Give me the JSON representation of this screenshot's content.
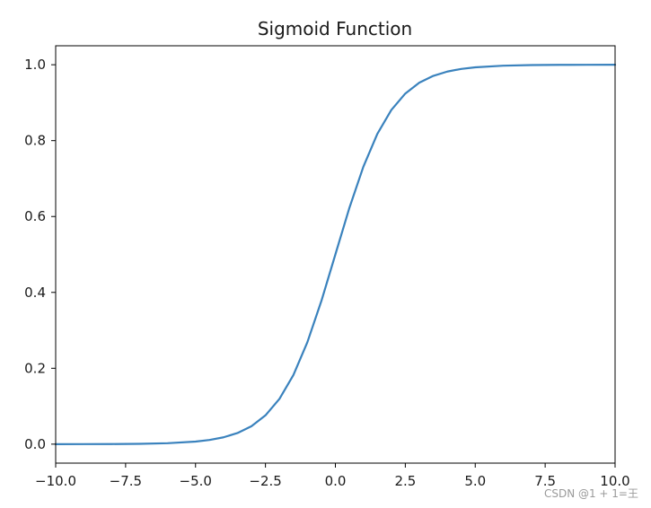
{
  "watermark": "CSDN @1 + 1=王",
  "chart_data": {
    "type": "line",
    "title": "Sigmoid Function",
    "xlabel": "",
    "ylabel": "",
    "xlim": [
      -10,
      10
    ],
    "ylim": [
      -0.05,
      1.05
    ],
    "grid": false,
    "x_ticks": [
      -10,
      -7.5,
      -5,
      -2.5,
      0,
      2.5,
      5,
      7.5,
      10
    ],
    "x_tick_labels": [
      "−10.0",
      "−7.5",
      "−5.0",
      "−2.5",
      "0.0",
      "2.5",
      "5.0",
      "7.5",
      "10.0"
    ],
    "y_ticks": [
      0,
      0.2,
      0.4,
      0.6,
      0.8,
      1.0
    ],
    "y_tick_labels": [
      "0.0",
      "0.2",
      "0.4",
      "0.6",
      "0.8",
      "1.0"
    ],
    "series": [
      {
        "color": "#3a82bd",
        "x": [
          -10,
          -9,
          -8,
          -7,
          -6,
          -5,
          -4.5,
          -4,
          -3.5,
          -3,
          -2.5,
          -2,
          -1.5,
          -1,
          -0.5,
          0,
          0.5,
          1,
          1.5,
          2,
          2.5,
          3,
          3.5,
          4,
          4.5,
          5,
          6,
          7,
          8,
          9,
          10
        ],
        "y": [
          0.0,
          0.0001,
          0.0003,
          0.0009,
          0.0025,
          0.0067,
          0.011,
          0.018,
          0.0293,
          0.0474,
          0.0759,
          0.1192,
          0.1824,
          0.2689,
          0.3775,
          0.5,
          0.6225,
          0.7311,
          0.8176,
          0.8808,
          0.9241,
          0.9526,
          0.9707,
          0.982,
          0.989,
          0.9933,
          0.9975,
          0.9991,
          0.9997,
          0.9999,
          1.0
        ]
      }
    ]
  }
}
